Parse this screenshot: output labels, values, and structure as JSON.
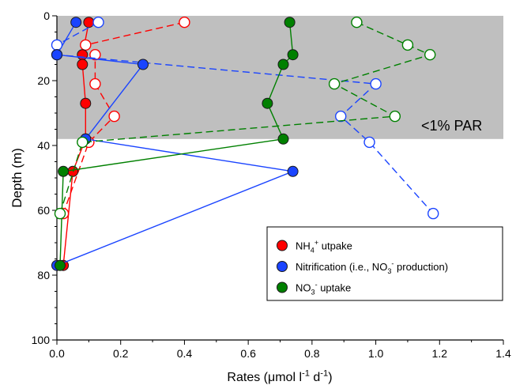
{
  "chart_data": {
    "type": "line",
    "ylabel": "Depth (m)",
    "xlabel_parts": [
      {
        "t": "Rates (μmol l"
      },
      {
        "t": "-1",
        "sup": true
      },
      {
        "t": " d"
      },
      {
        "t": "-1",
        "sup": true
      },
      {
        "t": ")"
      }
    ],
    "xlim": [
      0,
      1.4
    ],
    "ylim": [
      0,
      100
    ],
    "y_axis_inverted": true,
    "xticks": [
      "0.0",
      "0.2",
      "0.4",
      "0.6",
      "0.8",
      "1.0",
      "1.2",
      "1.4"
    ],
    "yticks": [
      "0",
      "20",
      "40",
      "60",
      "80",
      "100"
    ],
    "grid": false,
    "legend_position": "lower-right",
    "shaded_region": {
      "depth_from": 0,
      "depth_to": 38,
      "label": "<1% PAR",
      "color": "#bfbfbf"
    },
    "series": [
      {
        "label_parts": [
          {
            "t": "NH"
          },
          {
            "t": "4",
            "sub": true
          },
          {
            "t": "+",
            "sup": true
          },
          {
            "t": " utpake"
          }
        ],
        "color": "#ff0000",
        "filled": {
          "line": "solid",
          "points": [
            {
              "x": 0.1,
              "y": 2
            },
            {
              "x": 0.08,
              "y": 12
            },
            {
              "x": 0.08,
              "y": 15
            },
            {
              "x": 0.09,
              "y": 27
            },
            {
              "x": 0.09,
              "y": 38
            },
            {
              "x": 0.05,
              "y": 48
            },
            {
              "x": 0.02,
              "y": 77
            }
          ]
        },
        "hollow": {
          "line": "dashed",
          "points": [
            {
              "x": 0.4,
              "y": 2
            },
            {
              "x": 0.09,
              "y": 9
            },
            {
              "x": 0.12,
              "y": 12
            },
            {
              "x": 0.12,
              "y": 21
            },
            {
              "x": 0.18,
              "y": 31
            },
            {
              "x": 0.1,
              "y": 39
            },
            {
              "x": 0.02,
              "y": 61
            }
          ]
        }
      },
      {
        "label_parts": [
          {
            "t": "Nitrification (i.e., NO"
          },
          {
            "t": "3",
            "sub": true
          },
          {
            "t": "-",
            "sup": true
          },
          {
            "t": " production)"
          }
        ],
        "color": "#1a44ff",
        "filled": {
          "line": "solid",
          "points": [
            {
              "x": 0.06,
              "y": 2
            },
            {
              "x": 0.0,
              "y": 12
            },
            {
              "x": 0.27,
              "y": 15
            },
            {
              "x": 0.09,
              "y": 38
            },
            {
              "x": 0.74,
              "y": 48
            },
            {
              "x": 0.0,
              "y": 77
            }
          ]
        },
        "hollow": {
          "line": "dashed",
          "points": [
            {
              "x": 0.13,
              "y": 2
            },
            {
              "x": 0.0,
              "y": 9
            },
            {
              "x": 0.0,
              "y": 12
            },
            {
              "x": 1.0,
              "y": 21
            },
            {
              "x": 0.89,
              "y": 31
            },
            {
              "x": 0.98,
              "y": 39
            },
            {
              "x": 1.18,
              "y": 61
            }
          ]
        }
      },
      {
        "label_parts": [
          {
            "t": "NO"
          },
          {
            "t": "3",
            "sub": true
          },
          {
            "t": "-",
            "sup": true
          },
          {
            "t": " uptake"
          }
        ],
        "color": "#008000",
        "filled": {
          "line": "solid",
          "points": [
            {
              "x": 0.73,
              "y": 2
            },
            {
              "x": 0.74,
              "y": 12
            },
            {
              "x": 0.71,
              "y": 15
            },
            {
              "x": 0.66,
              "y": 27
            },
            {
              "x": 0.71,
              "y": 38
            },
            {
              "x": 0.02,
              "y": 48
            },
            {
              "x": 0.01,
              "y": 77
            }
          ]
        },
        "hollow": {
          "line": "dashed",
          "points": [
            {
              "x": 0.94,
              "y": 2
            },
            {
              "x": 1.1,
              "y": 9
            },
            {
              "x": 1.17,
              "y": 12
            },
            {
              "x": 0.87,
              "y": 21
            },
            {
              "x": 1.06,
              "y": 31
            },
            {
              "x": 0.08,
              "y": 39
            },
            {
              "x": 0.01,
              "y": 61
            }
          ]
        }
      }
    ]
  }
}
